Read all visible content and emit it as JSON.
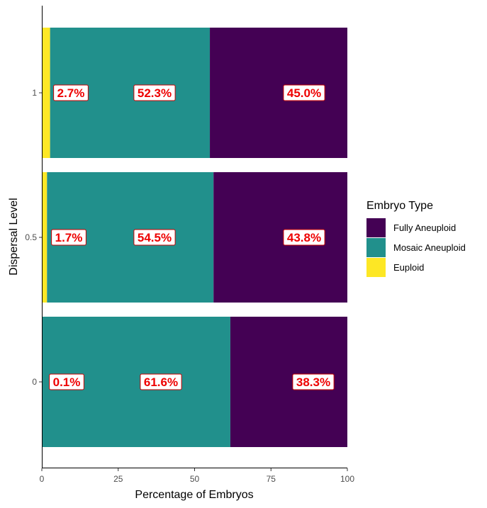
{
  "chart_data": {
    "type": "bar",
    "orientation": "horizontal",
    "stacked": true,
    "title": "",
    "xlabel": "Percentage of Embryos",
    "ylabel": "Dispersal Level",
    "xlim": [
      0,
      100
    ],
    "x_ticks": [
      "0",
      "25",
      "50",
      "75",
      "100"
    ],
    "categories": [
      "0",
      "0.5",
      "1"
    ],
    "legend_title": "Embryo Type",
    "legend_position": "right",
    "grid": false,
    "series": [
      {
        "name": "Euploid",
        "color": "#FDE725",
        "values": [
          0.1,
          1.7,
          2.7
        ],
        "labels": [
          "0.1%",
          "1.7%",
          "2.7%"
        ]
      },
      {
        "name": "Mosaic Aneuploid",
        "color": "#21908C",
        "values": [
          61.6,
          54.5,
          52.3
        ],
        "labels": [
          "61.6%",
          "54.5%",
          "52.3%"
        ]
      },
      {
        "name": "Fully Aneuploid",
        "color": "#440154",
        "values": [
          38.3,
          43.8,
          45.0
        ],
        "labels": [
          "38.3%",
          "43.8%",
          "45.0%"
        ]
      }
    ],
    "legend_order": [
      "Fully Aneuploid",
      "Mosaic Aneuploid",
      "Euploid"
    ],
    "label_text_color": "#EE0000",
    "label_border_color": "#CC0000"
  }
}
